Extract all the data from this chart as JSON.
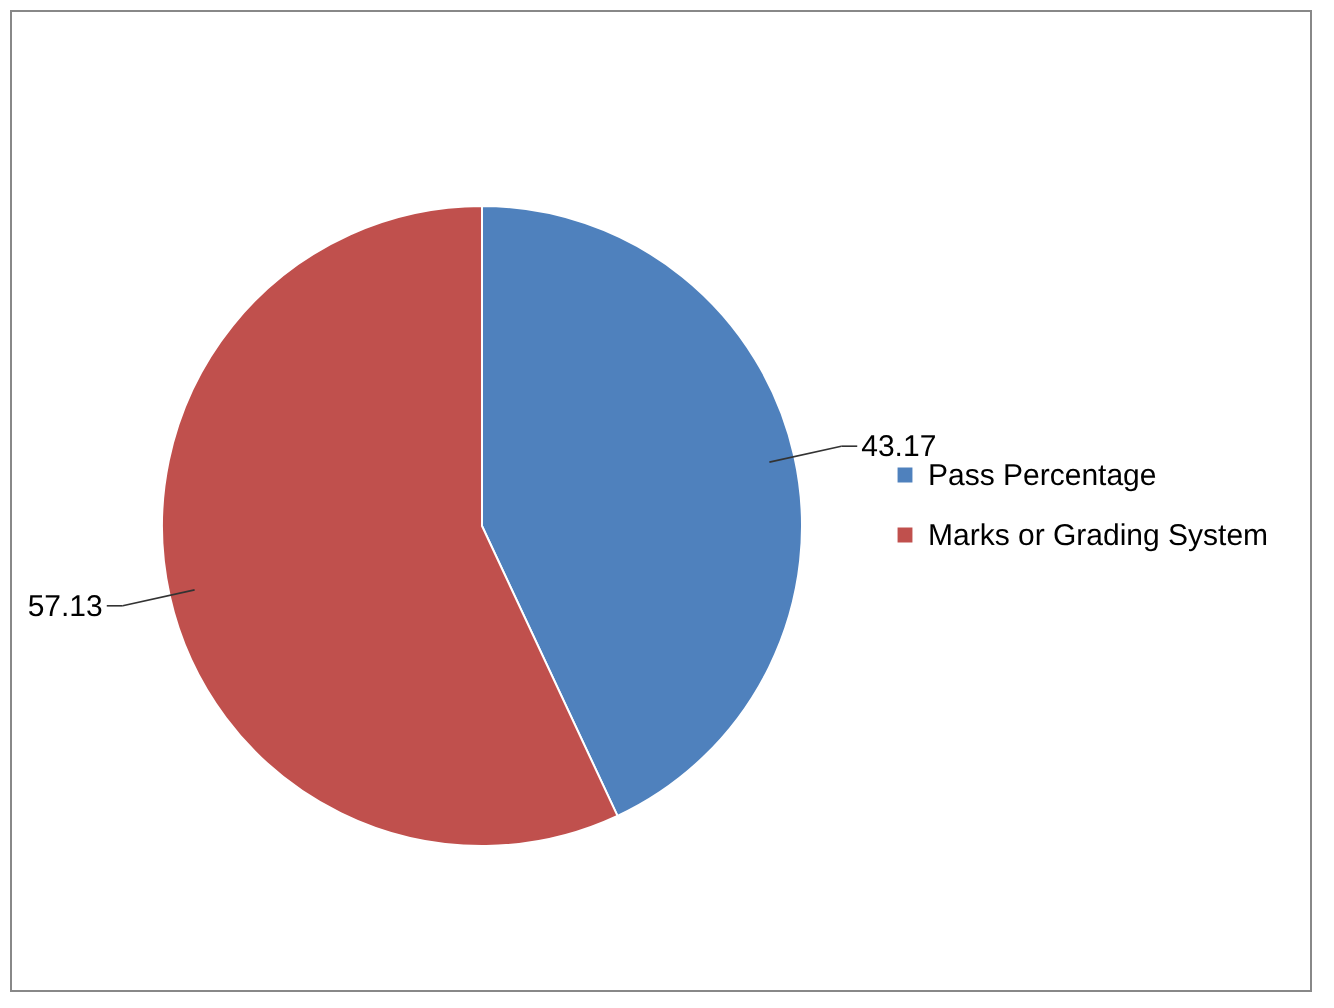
{
  "chart_data": {
    "type": "pie",
    "categories": [
      "Pass Percentage",
      "Marks or Grading System"
    ],
    "values": [
      43.17,
      57.13
    ],
    "colors": [
      "#4f81bd",
      "#c0504d"
    ],
    "data_labels": true,
    "legend": "right"
  }
}
